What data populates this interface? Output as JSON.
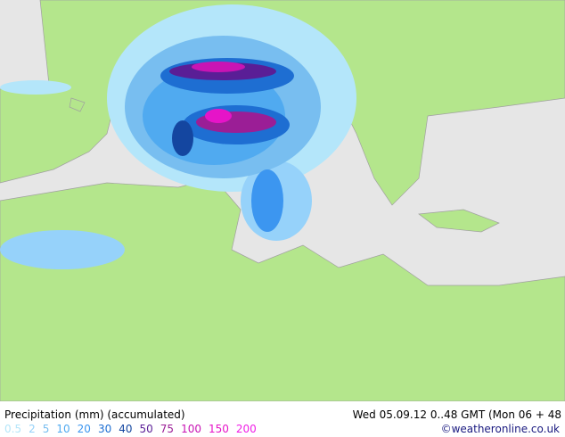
{
  "footer": {
    "title": "Precipitation (mm) (accumulated)",
    "time": "Wed 05.09.12 0..48 GMT  (Mon 06 + 48",
    "credit": "©weatheronline.co.uk",
    "legend": [
      {
        "label": "0.5",
        "color": "#b4e6fa"
      },
      {
        "label": "2",
        "color": "#96d2fa"
      },
      {
        "label": "5",
        "color": "#78bef0"
      },
      {
        "label": "10",
        "color": "#50aaf0"
      },
      {
        "label": "20",
        "color": "#3c96f0"
      },
      {
        "label": "30",
        "color": "#1e6ed2"
      },
      {
        "label": "40",
        "color": "#1446a0"
      },
      {
        "label": "50",
        "color": "#5a1e96"
      },
      {
        "label": "75",
        "color": "#9b1e96"
      },
      {
        "label": "100",
        "color": "#c814b4"
      },
      {
        "label": "150",
        "color": "#e614c8"
      },
      {
        "label": "200",
        "color": "#f01ee6"
      }
    ]
  }
}
